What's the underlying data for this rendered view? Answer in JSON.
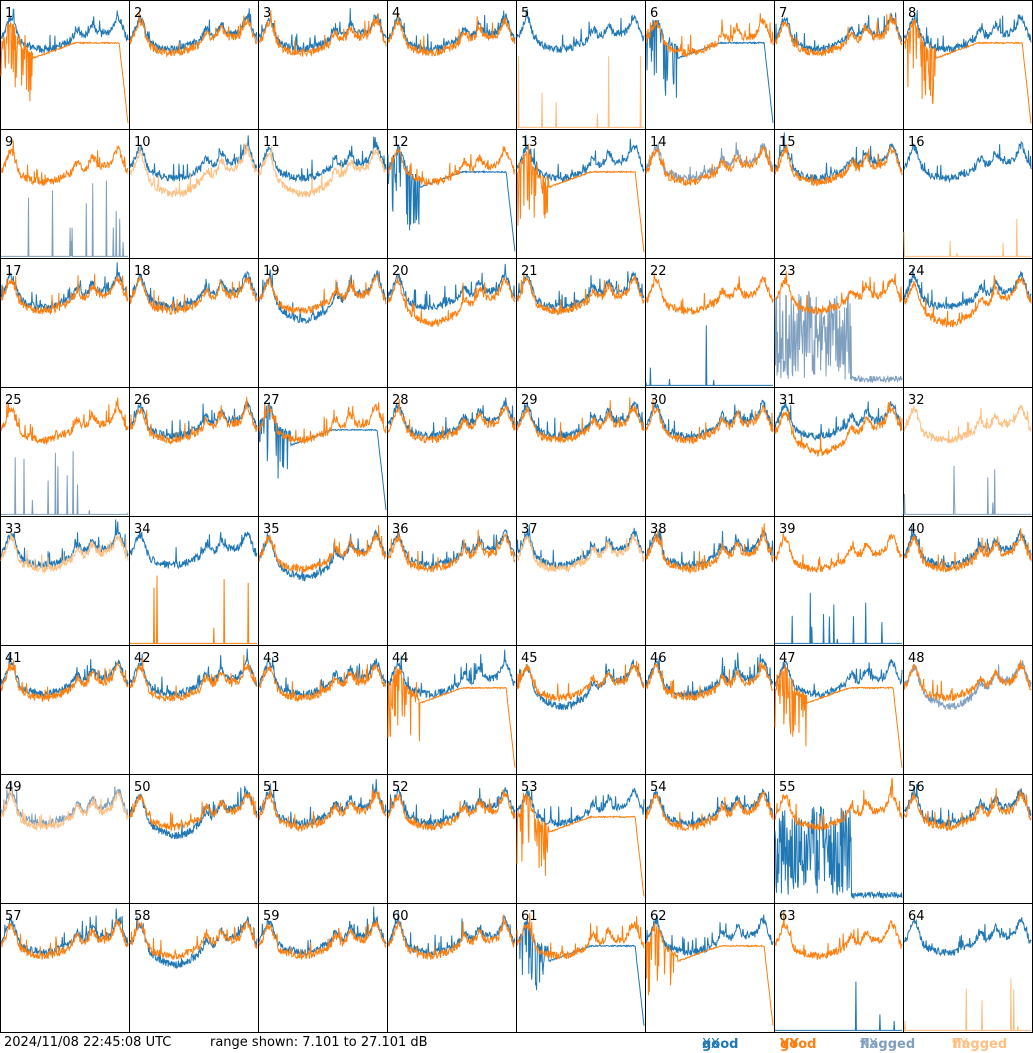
{
  "footer": {
    "timestamp": "2024/11/08 22:45:08 UTC",
    "range_text": "range shown: 7.101 to 27.101 dB"
  },
  "legend": [
    {
      "quality": "good",
      "pol": "XX",
      "color": "#1f77b4"
    },
    {
      "quality": "good",
      "pol": "YY",
      "color": "#ff7f0e"
    },
    {
      "quality": "flagged",
      "pol": "XX",
      "color": "#7f9fbf"
    },
    {
      "quality": "flagged",
      "pol": "YY",
      "color": "#ffbf80"
    }
  ],
  "chart_data": {
    "type": "line",
    "grid": {
      "rows": 8,
      "cols": 8
    },
    "ylim": [
      7.101,
      27.101
    ],
    "panels": [
      {
        "id": "1",
        "xx": "good",
        "yy": "good",
        "xx_shape": "normal",
        "yy_shape": "dropout"
      },
      {
        "id": "2",
        "xx": "good",
        "yy": "good",
        "xx_shape": "normal",
        "yy_shape": "normal"
      },
      {
        "id": "3",
        "xx": "good",
        "yy": "good",
        "xx_shape": "normal",
        "yy_shape": "normal"
      },
      {
        "id": "4",
        "xx": "good",
        "yy": "good",
        "xx_shape": "normal",
        "yy_shape": "normal"
      },
      {
        "id": "5",
        "xx": "good",
        "yy": "flagged",
        "xx_shape": "normal",
        "yy_shape": "dead"
      },
      {
        "id": "6",
        "xx": "good",
        "yy": "good",
        "xx_shape": "dropout",
        "yy_shape": "normal"
      },
      {
        "id": "7",
        "xx": "good",
        "yy": "good",
        "xx_shape": "normal",
        "yy_shape": "normal"
      },
      {
        "id": "8",
        "xx": "good",
        "yy": "good",
        "xx_shape": "normal",
        "yy_shape": "dropout"
      },
      {
        "id": "9",
        "xx": "flagged",
        "yy": "good",
        "xx_shape": "dead",
        "yy_shape": "normal"
      },
      {
        "id": "10",
        "xx": "good",
        "yy": "flagged",
        "xx_shape": "normal",
        "yy_shape": "low"
      },
      {
        "id": "11",
        "xx": "good",
        "yy": "flagged",
        "xx_shape": "normal",
        "yy_shape": "low"
      },
      {
        "id": "12",
        "xx": "good",
        "yy": "good",
        "xx_shape": "dropout",
        "yy_shape": "normal"
      },
      {
        "id": "13",
        "xx": "good",
        "yy": "good",
        "xx_shape": "normal",
        "yy_shape": "dropout"
      },
      {
        "id": "14",
        "xx": "flagged",
        "yy": "good",
        "xx_shape": "normal",
        "yy_shape": "normal"
      },
      {
        "id": "15",
        "xx": "good",
        "yy": "good",
        "xx_shape": "normal",
        "yy_shape": "normal"
      },
      {
        "id": "16",
        "xx": "good",
        "yy": "flagged",
        "xx_shape": "normal",
        "yy_shape": "dead"
      },
      {
        "id": "17",
        "xx": "good",
        "yy": "good",
        "xx_shape": "normal",
        "yy_shape": "normal"
      },
      {
        "id": "18",
        "xx": "good",
        "yy": "good",
        "xx_shape": "normal",
        "yy_shape": "normal"
      },
      {
        "id": "19",
        "xx": "good",
        "yy": "good",
        "xx_shape": "low",
        "yy_shape": "normal"
      },
      {
        "id": "20",
        "xx": "good",
        "yy": "good",
        "xx_shape": "normal",
        "yy_shape": "low"
      },
      {
        "id": "21",
        "xx": "good",
        "yy": "good",
        "xx_shape": "normal",
        "yy_shape": "normal"
      },
      {
        "id": "22",
        "xx": "good",
        "yy": "good",
        "xx_shape": "dead",
        "yy_shape": "normal"
      },
      {
        "id": "23",
        "xx": "flagged",
        "yy": "good",
        "xx_shape": "noisy",
        "yy_shape": "normal"
      },
      {
        "id": "24",
        "xx": "good",
        "yy": "good",
        "xx_shape": "normal",
        "yy_shape": "low"
      },
      {
        "id": "25",
        "xx": "flagged",
        "yy": "good",
        "xx_shape": "dead",
        "yy_shape": "normal"
      },
      {
        "id": "26",
        "xx": "good",
        "yy": "good",
        "xx_shape": "normal",
        "yy_shape": "normal"
      },
      {
        "id": "27",
        "xx": "good",
        "yy": "good",
        "xx_shape": "dropout",
        "yy_shape": "normal"
      },
      {
        "id": "28",
        "xx": "good",
        "yy": "good",
        "xx_shape": "normal",
        "yy_shape": "normal"
      },
      {
        "id": "29",
        "xx": "good",
        "yy": "good",
        "xx_shape": "normal",
        "yy_shape": "normal"
      },
      {
        "id": "30",
        "xx": "good",
        "yy": "good",
        "xx_shape": "normal",
        "yy_shape": "normal"
      },
      {
        "id": "31",
        "xx": "good",
        "yy": "good",
        "xx_shape": "normal",
        "yy_shape": "low"
      },
      {
        "id": "32",
        "xx": "flagged",
        "yy": "flagged",
        "xx_shape": "dead",
        "yy_shape": "normal"
      },
      {
        "id": "33",
        "xx": "good",
        "yy": "flagged",
        "xx_shape": "normal",
        "yy_shape": "normal"
      },
      {
        "id": "34",
        "xx": "good",
        "yy": "good",
        "xx_shape": "normal",
        "yy_shape": "dead"
      },
      {
        "id": "35",
        "xx": "good",
        "yy": "good",
        "xx_shape": "low",
        "yy_shape": "normal"
      },
      {
        "id": "36",
        "xx": "good",
        "yy": "good",
        "xx_shape": "normal",
        "yy_shape": "normal"
      },
      {
        "id": "37",
        "xx": "good",
        "yy": "flagged",
        "xx_shape": "normal",
        "yy_shape": "normal"
      },
      {
        "id": "38",
        "xx": "good",
        "yy": "good",
        "xx_shape": "normal",
        "yy_shape": "normal"
      },
      {
        "id": "39",
        "xx": "good",
        "yy": "good",
        "xx_shape": "dead",
        "yy_shape": "normal"
      },
      {
        "id": "40",
        "xx": "good",
        "yy": "good",
        "xx_shape": "normal",
        "yy_shape": "normal"
      },
      {
        "id": "41",
        "xx": "good",
        "yy": "good",
        "xx_shape": "normal",
        "yy_shape": "normal"
      },
      {
        "id": "42",
        "xx": "good",
        "yy": "good",
        "xx_shape": "normal",
        "yy_shape": "normal"
      },
      {
        "id": "43",
        "xx": "good",
        "yy": "good",
        "xx_shape": "normal",
        "yy_shape": "normal"
      },
      {
        "id": "44",
        "xx": "good",
        "yy": "good",
        "xx_shape": "normal",
        "yy_shape": "dropout"
      },
      {
        "id": "45",
        "xx": "good",
        "yy": "good",
        "xx_shape": "low",
        "yy_shape": "normal"
      },
      {
        "id": "46",
        "xx": "good",
        "yy": "good",
        "xx_shape": "normal",
        "yy_shape": "normal"
      },
      {
        "id": "47",
        "xx": "good",
        "yy": "good",
        "xx_shape": "normal",
        "yy_shape": "dropout"
      },
      {
        "id": "48",
        "xx": "flagged",
        "yy": "good",
        "xx_shape": "low",
        "yy_shape": "normal"
      },
      {
        "id": "49",
        "xx": "flagged",
        "yy": "flagged",
        "xx_shape": "normal",
        "yy_shape": "normal"
      },
      {
        "id": "50",
        "xx": "good",
        "yy": "good",
        "xx_shape": "low",
        "yy_shape": "normal"
      },
      {
        "id": "51",
        "xx": "good",
        "yy": "good",
        "xx_shape": "normal",
        "yy_shape": "normal"
      },
      {
        "id": "52",
        "xx": "good",
        "yy": "good",
        "xx_shape": "normal",
        "yy_shape": "normal"
      },
      {
        "id": "53",
        "xx": "good",
        "yy": "good",
        "xx_shape": "normal",
        "yy_shape": "dropout"
      },
      {
        "id": "54",
        "xx": "good",
        "yy": "good",
        "xx_shape": "normal",
        "yy_shape": "normal"
      },
      {
        "id": "55",
        "xx": "good",
        "yy": "good",
        "xx_shape": "noisy",
        "yy_shape": "normal"
      },
      {
        "id": "56",
        "xx": "good",
        "yy": "good",
        "xx_shape": "normal",
        "yy_shape": "normal"
      },
      {
        "id": "57",
        "xx": "good",
        "yy": "good",
        "xx_shape": "normal",
        "yy_shape": "normal"
      },
      {
        "id": "58",
        "xx": "good",
        "yy": "good",
        "xx_shape": "low",
        "yy_shape": "normal"
      },
      {
        "id": "59",
        "xx": "good",
        "yy": "good",
        "xx_shape": "normal",
        "yy_shape": "normal"
      },
      {
        "id": "60",
        "xx": "good",
        "yy": "good",
        "xx_shape": "normal",
        "yy_shape": "normal"
      },
      {
        "id": "61",
        "xx": "good",
        "yy": "good",
        "xx_shape": "dropout",
        "yy_shape": "normal"
      },
      {
        "id": "62",
        "xx": "good",
        "yy": "good",
        "xx_shape": "normal",
        "yy_shape": "dropout"
      },
      {
        "id": "63",
        "xx": "good",
        "yy": "good",
        "xx_shape": "dead",
        "yy_shape": "normal"
      },
      {
        "id": "64",
        "xx": "good",
        "yy": "flagged",
        "xx_shape": "normal",
        "yy_shape": "dead"
      }
    ]
  }
}
